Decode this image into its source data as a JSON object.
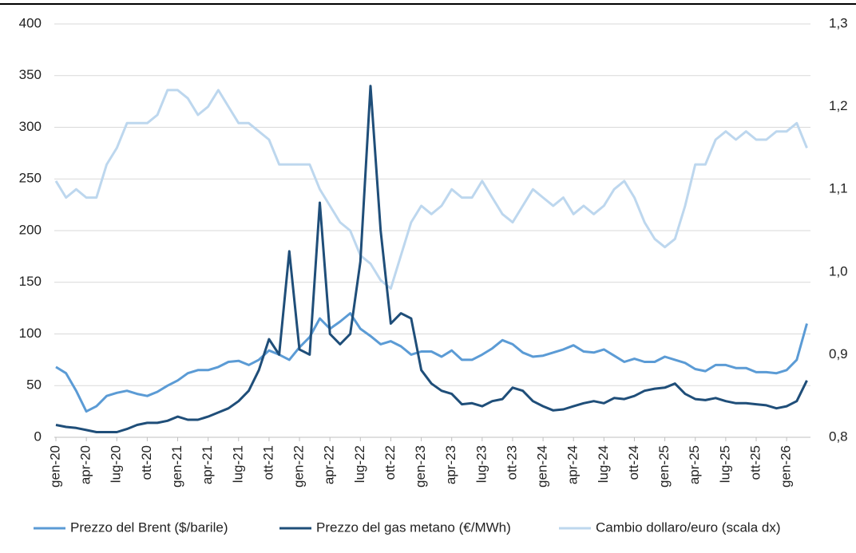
{
  "chart_data": {
    "type": "line",
    "categories": [
      "gen-20",
      null,
      null,
      "apr-20",
      null,
      null,
      "lug-20",
      null,
      null,
      "ott-20",
      null,
      null,
      "gen-21",
      null,
      null,
      "apr-21",
      null,
      null,
      "lug-21",
      null,
      null,
      "ott-21",
      null,
      null,
      "gen-22",
      null,
      null,
      "apr-22",
      null,
      null,
      "lug-22",
      null,
      null,
      "ott-22",
      null,
      null,
      "gen-23",
      null,
      null,
      "apr-23",
      null,
      null,
      "lug-23",
      null,
      null,
      "ott-23",
      null,
      null,
      "gen-24",
      null,
      null,
      "apr-24",
      null,
      null,
      "lug-24",
      null,
      null,
      "ott-24",
      null,
      null,
      "gen-25",
      null,
      null,
      "apr-25",
      null,
      null,
      "lug-25",
      null,
      null,
      "ott-25",
      null,
      null,
      "gen-26",
      null,
      null
    ],
    "series": [
      {
        "name": "Prezzo del Brent ($/barile)",
        "color": "#5b9bd5",
        "axis": "y",
        "values": [
          68,
          62,
          45,
          25,
          30,
          40,
          43,
          45,
          42,
          40,
          44,
          50,
          55,
          62,
          65,
          65,
          68,
          73,
          74,
          70,
          75,
          84,
          80,
          75,
          87,
          97,
          115,
          105,
          112,
          120,
          105,
          98,
          90,
          93,
          88,
          80,
          83,
          83,
          78,
          84,
          75,
          75,
          80,
          86,
          94,
          90,
          82,
          78,
          79,
          82,
          85,
          89,
          83,
          82,
          85,
          79,
          73,
          76,
          73,
          73,
          78,
          75,
          72,
          66,
          64,
          70,
          70,
          67,
          67,
          63,
          63,
          62,
          65,
          75,
          110
        ]
      },
      {
        "name": "Prezzo del gas metano (€/MWh)",
        "color": "#1f4e79",
        "axis": "y",
        "values": [
          12,
          10,
          9,
          7,
          5,
          5,
          5,
          8,
          12,
          14,
          14,
          16,
          20,
          17,
          17,
          20,
          24,
          28,
          35,
          45,
          65,
          95,
          80,
          180,
          85,
          80,
          227,
          100,
          90,
          100,
          170,
          340,
          200,
          110,
          120,
          115,
          65,
          52,
          45,
          42,
          32,
          33,
          30,
          35,
          37,
          48,
          45,
          35,
          30,
          26,
          27,
          30,
          33,
          35,
          33,
          38,
          37,
          40,
          45,
          47,
          48,
          52,
          42,
          37,
          36,
          38,
          35,
          33,
          33,
          32,
          31,
          28,
          30,
          35,
          55
        ]
      },
      {
        "name": "Cambio dollaro/euro (scala dx)",
        "color": "#bdd7ee",
        "axis": "y2",
        "values": [
          1.11,
          1.09,
          1.1,
          1.09,
          1.09,
          1.13,
          1.15,
          1.18,
          1.18,
          1.18,
          1.19,
          1.22,
          1.22,
          1.21,
          1.19,
          1.2,
          1.22,
          1.2,
          1.18,
          1.18,
          1.17,
          1.16,
          1.13,
          1.13,
          1.13,
          1.13,
          1.1,
          1.08,
          1.06,
          1.05,
          1.02,
          1.01,
          0.99,
          0.98,
          1.02,
          1.06,
          1.08,
          1.07,
          1.08,
          1.1,
          1.09,
          1.09,
          1.11,
          1.09,
          1.07,
          1.06,
          1.08,
          1.1,
          1.09,
          1.08,
          1.09,
          1.07,
          1.08,
          1.07,
          1.08,
          1.1,
          1.11,
          1.09,
          1.06,
          1.04,
          1.03,
          1.04,
          1.08,
          1.13,
          1.13,
          1.16,
          1.17,
          1.16,
          1.17,
          1.16,
          1.16,
          1.17,
          1.17,
          1.18,
          1.15
        ]
      }
    ],
    "ylim": [
      0,
      400
    ],
    "yticks": [
      0,
      50,
      100,
      150,
      200,
      250,
      300,
      350,
      400
    ],
    "y2lim": [
      0.8,
      1.3
    ],
    "y2ticks": [
      {
        "value": 0.8,
        "label": "0,8"
      },
      {
        "value": 0.9,
        "label": "0,9"
      },
      {
        "value": 1.0,
        "label": "1,0"
      },
      {
        "value": 1.1,
        "label": "1,1"
      },
      {
        "value": 1.2,
        "label": "1,2"
      },
      {
        "value": 1.3,
        "label": "1,3"
      }
    ],
    "grid": true,
    "legend": "bottom"
  }
}
